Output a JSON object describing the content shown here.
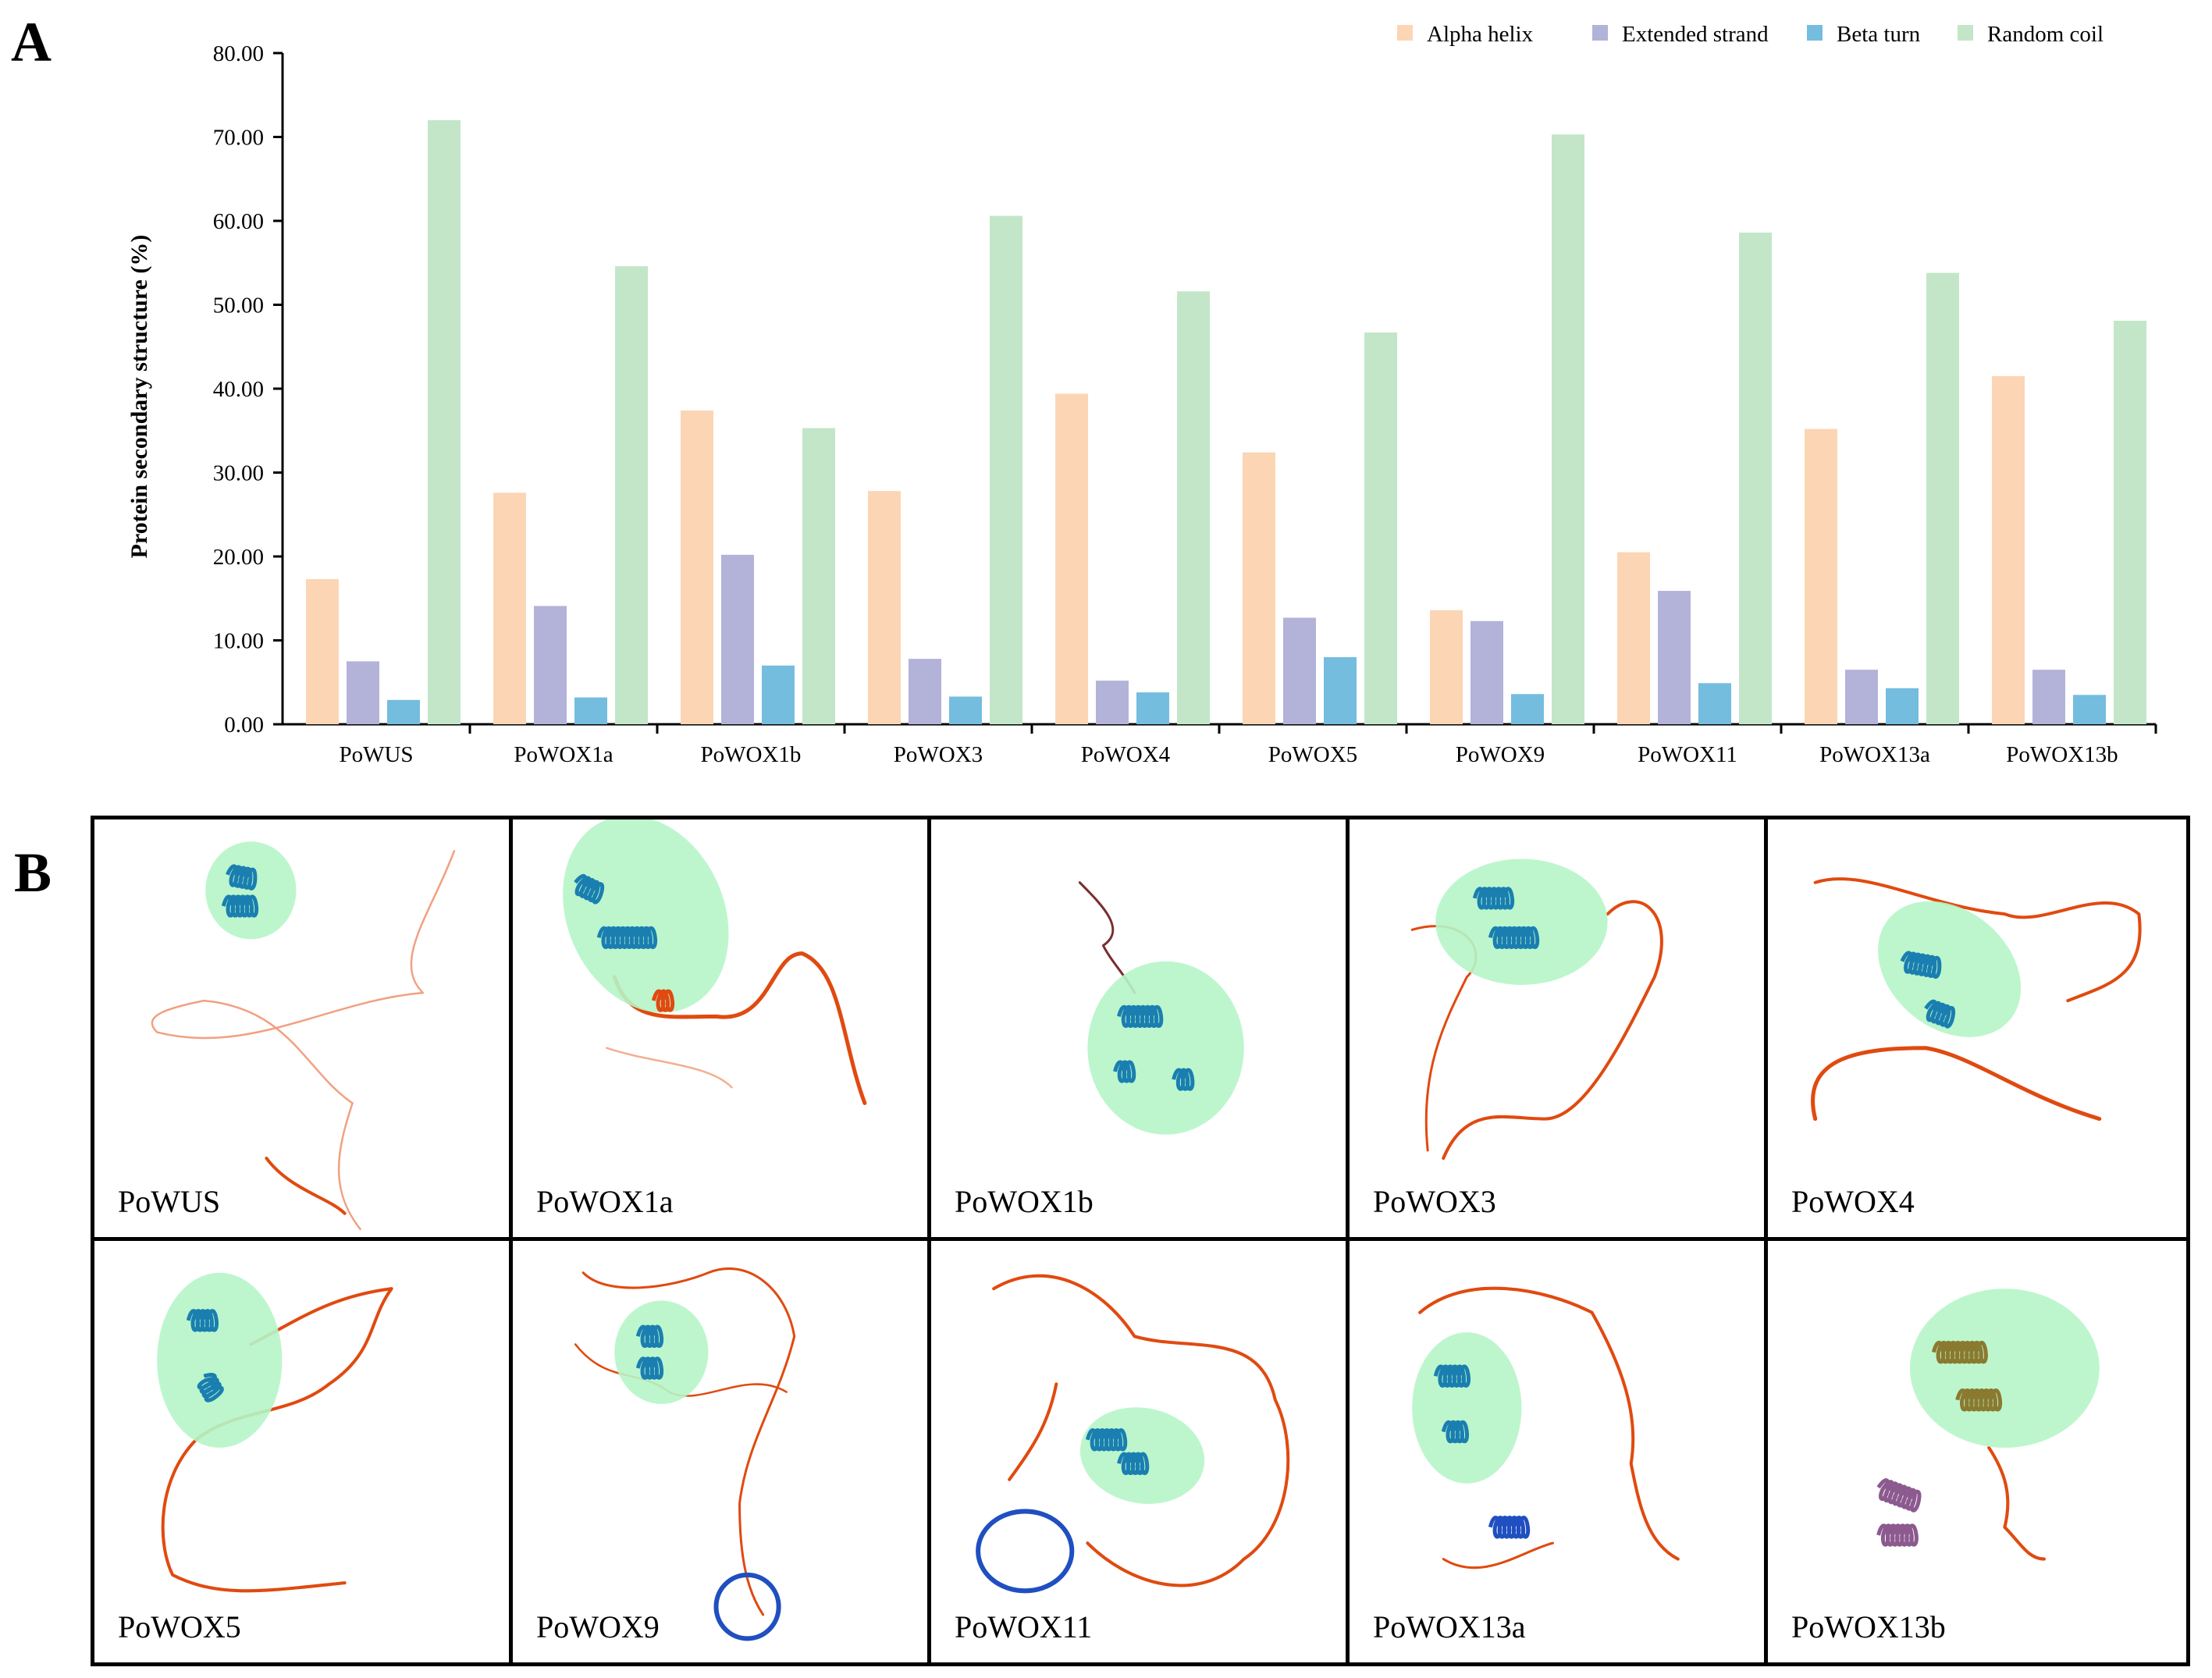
{
  "panel_a": "A",
  "panel_b": "B",
  "chart_data": {
    "type": "bar",
    "title": "",
    "xlabel": "",
    "ylabel": "Protein secondary structure (%)",
    "ylim": [
      0,
      80
    ],
    "yticks": [
      "0.00",
      "10.00",
      "20.00",
      "30.00",
      "40.00",
      "50.00",
      "60.00",
      "70.00",
      "80.00"
    ],
    "categories": [
      "PoWUS",
      "PoWOX1a",
      "PoWOX1b",
      "PoWOX3",
      "PoWOX4",
      "PoWOX5",
      "PoWOX9",
      "PoWOX11",
      "PoWOX13a",
      "PoWOX13b"
    ],
    "legend_position": "top-right",
    "series": [
      {
        "name": "Alpha helix",
        "color": "#fcd5b5",
        "values": [
          17.3,
          27.6,
          37.4,
          27.8,
          39.4,
          32.4,
          13.6,
          20.5,
          35.2,
          41.5
        ]
      },
      {
        "name": "Extended strand",
        "color": "#b3b2d9",
        "values": [
          7.5,
          14.1,
          20.2,
          7.8,
          5.2,
          12.7,
          12.3,
          15.9,
          6.5,
          6.5
        ]
      },
      {
        "name": "Beta turn",
        "color": "#74bddf",
        "values": [
          2.9,
          3.2,
          7.0,
          3.3,
          3.8,
          8.0,
          3.6,
          4.9,
          4.3,
          3.5
        ]
      },
      {
        "name": "Random coil",
        "color": "#c3e6c9",
        "values": [
          72.0,
          54.6,
          35.3,
          60.6,
          51.6,
          46.7,
          70.3,
          58.6,
          53.8,
          48.1
        ]
      }
    ]
  },
  "structures": [
    {
      "label": "PoWUS"
    },
    {
      "label": "PoWOX1a"
    },
    {
      "label": "PoWOX1b"
    },
    {
      "label": "PoWOX3"
    },
    {
      "label": "PoWOX4"
    },
    {
      "label": "PoWOX5"
    },
    {
      "label": "PoWOX9"
    },
    {
      "label": "PoWOX11"
    },
    {
      "label": "PoWOX13a"
    },
    {
      "label": "PoWOX13b"
    }
  ],
  "colors": {
    "highlight": "#b6f5c8",
    "coil": "#e04a10",
    "helix": "#1a7fb0",
    "domain_blue": "#1f4fc0"
  }
}
